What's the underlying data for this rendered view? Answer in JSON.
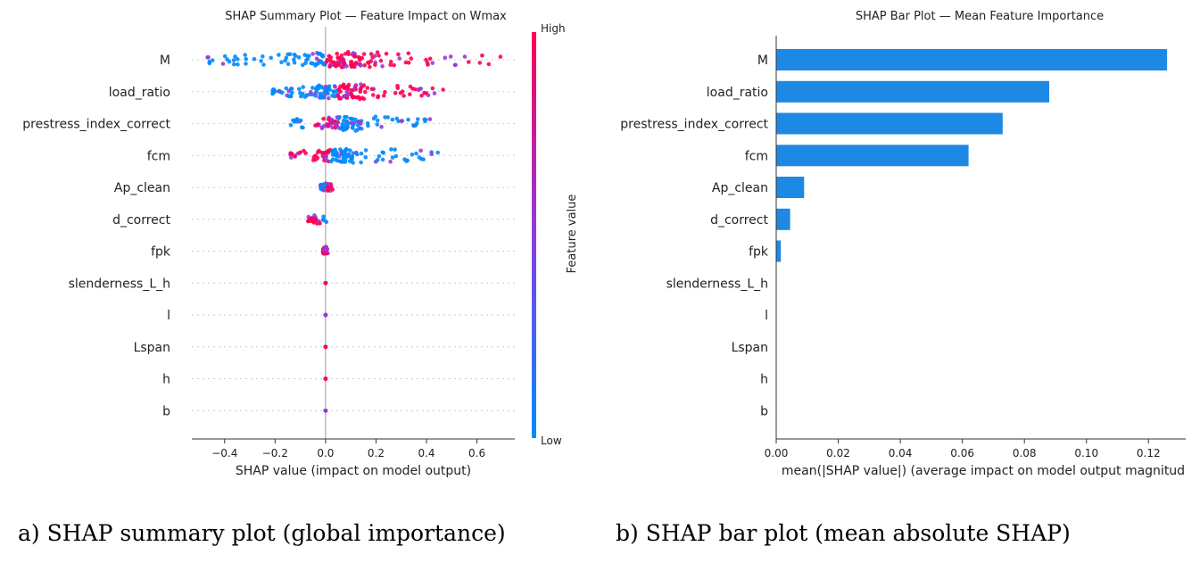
{
  "captions": {
    "a": "a) SHAP summary plot (global importance)",
    "b": "b) SHAP bar plot (mean absolute SHAP)"
  },
  "colors": {
    "high": "#ff0052",
    "low": "#008bfb",
    "bar": "#1e88e5"
  },
  "chart_data": [
    {
      "type": "scatter",
      "subtype": "shap-beeswarm",
      "title": "SHAP Summary Plot — Feature Impact on Wmax",
      "xlabel": "SHAP value (impact on model output)",
      "ylabel": "",
      "xlim": [
        -0.53,
        0.75
      ],
      "xticks": [
        "−0.4",
        "−0.2",
        "0.0",
        "0.2",
        "0.4",
        "0.6"
      ],
      "xtick_values": [
        -0.4,
        -0.2,
        0.0,
        0.2,
        0.4,
        0.6
      ],
      "categories": [
        "M",
        "load_ratio",
        "prestress_index_correct",
        "fcm",
        "Ap_clean",
        "d_correct",
        "fpk",
        "slenderness_L_h",
        "l",
        "Lspan",
        "h",
        "b"
      ],
      "grid": "dotted row guides",
      "colorbar": {
        "label": "Feature value",
        "high": "High",
        "low": "Low"
      },
      "series": [
        {
          "feature": "M",
          "min": -0.47,
          "max": 0.7,
          "low_range": [
            -0.47,
            0.0
          ],
          "high_range": [
            0.0,
            0.7
          ]
        },
        {
          "feature": "load_ratio",
          "min": -0.21,
          "max": 0.47,
          "low_range": [
            -0.21,
            -0.02
          ],
          "high_range": [
            0.05,
            0.47
          ]
        },
        {
          "feature": "prestress_index_correct",
          "min": -0.14,
          "max": 0.46,
          "low_range": [
            -0.14,
            0.46
          ],
          "high_range": [
            -0.05,
            0.05
          ]
        },
        {
          "feature": "fcm",
          "min": -0.14,
          "max": 0.45,
          "low_range": [
            0.0,
            0.45
          ],
          "high_range": [
            -0.14,
            0.02
          ]
        },
        {
          "feature": "Ap_clean",
          "min": -0.02,
          "max": 0.03,
          "low_range": [
            -0.02,
            0.0
          ],
          "high_range": [
            0.0,
            0.03
          ]
        },
        {
          "feature": "d_correct",
          "min": -0.07,
          "max": 0.01,
          "low_range": [
            0.0,
            0.01
          ],
          "high_range": [
            -0.07,
            -0.01
          ]
        },
        {
          "feature": "fpk",
          "min": -0.01,
          "max": 0.01,
          "low_range": [
            -0.01,
            0.01
          ],
          "high_range": [
            -0.01,
            0.01
          ]
        },
        {
          "feature": "slenderness_L_h",
          "min": 0.0,
          "max": 0.0,
          "low_range": [
            0.0,
            0.0
          ],
          "high_range": [
            0.0,
            0.0
          ]
        },
        {
          "feature": "l",
          "min": 0.0,
          "max": 0.0,
          "low_range": [
            0.0,
            0.0
          ],
          "high_range": [
            0.0,
            0.0
          ]
        },
        {
          "feature": "Lspan",
          "min": 0.0,
          "max": 0.0,
          "low_range": [
            0.0,
            0.0
          ],
          "high_range": [
            0.0,
            0.0
          ]
        },
        {
          "feature": "h",
          "min": 0.0,
          "max": 0.0,
          "low_range": [
            0.0,
            0.0
          ],
          "high_range": [
            0.0,
            0.0
          ]
        },
        {
          "feature": "b",
          "min": 0.0,
          "max": 0.0,
          "low_range": [
            0.0,
            0.0
          ],
          "high_range": [
            0.0,
            0.0
          ]
        }
      ]
    },
    {
      "type": "bar",
      "orientation": "horizontal",
      "title": "SHAP Bar Plot — Mean Feature Importance",
      "xlabel": "mean(|SHAP value|) (average impact on model output magnitud",
      "ylabel": "",
      "xlim": [
        0,
        0.132
      ],
      "xticks": [
        "0.00",
        "0.02",
        "0.04",
        "0.06",
        "0.08",
        "0.10",
        "0.12"
      ],
      "xtick_values": [
        0,
        0.02,
        0.04,
        0.06,
        0.08,
        0.1,
        0.12
      ],
      "categories": [
        "M",
        "load_ratio",
        "prestress_index_correct",
        "fcm",
        "Ap_clean",
        "d_correct",
        "fpk",
        "slenderness_L_h",
        "l",
        "Lspan",
        "h",
        "b"
      ],
      "values": [
        0.126,
        0.088,
        0.073,
        0.062,
        0.009,
        0.0045,
        0.0015,
        0.0,
        0.0,
        0.0,
        0.0,
        0.0
      ]
    }
  ]
}
